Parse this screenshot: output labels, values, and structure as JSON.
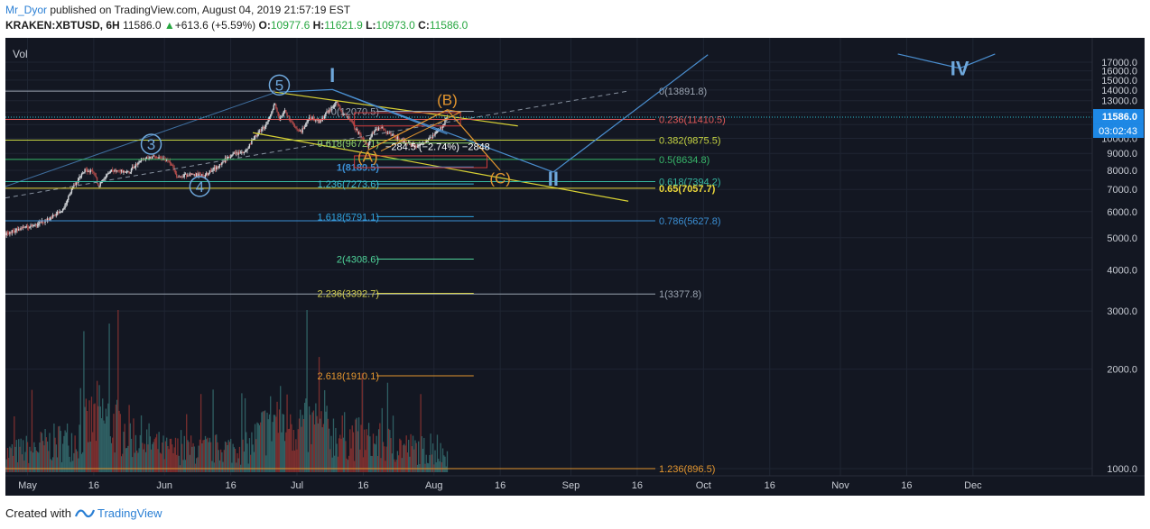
{
  "header": {
    "author": "Mr_Dyor",
    "published": "published on TradingView.com, August 04, 2019 21:57:19 EST",
    "symbol": "KRAKEN:XBTUSD, 6H",
    "last": "11586.0",
    "change": "+613.6 (+5.59%)",
    "o_label": "O:",
    "o": "10977.6",
    "h_label": "H:",
    "h": "11621.9",
    "l_label": "L:",
    "l": "10973.0",
    "c_label": "C:",
    "c": "11586.0"
  },
  "footer": {
    "created_with": "Created with",
    "brand": "TradingView"
  },
  "colors": {
    "background": "#131722",
    "candle_up": "#d5d8dc",
    "candle_down": "#ad4a4a",
    "vol_up": "#2f5f63",
    "vol_down": "#7a2f2f",
    "wave_blue": "#4a8ecf",
    "wave_orange": "#e3962f",
    "channel_yellow": "#d7d034",
    "price_tag": "#1e88e5"
  },
  "chart_data": {
    "type": "candlestick",
    "symbol": "KRAKEN:XBTUSD",
    "interval": "6H",
    "volume_label": "Vol",
    "x_axis": {
      "range": [
        "2019-04-26",
        "2019-12-28"
      ],
      "ticks": [
        {
          "date": "2019-05-01",
          "label": "May"
        },
        {
          "date": "2019-05-16",
          "label": "16"
        },
        {
          "date": "2019-06-01",
          "label": "Jun"
        },
        {
          "date": "2019-06-16",
          "label": "16"
        },
        {
          "date": "2019-07-01",
          "label": "Jul"
        },
        {
          "date": "2019-07-16",
          "label": "16"
        },
        {
          "date": "2019-08-01",
          "label": "Aug"
        },
        {
          "date": "2019-08-16",
          "label": "16"
        },
        {
          "date": "2019-09-01",
          "label": "Sep"
        },
        {
          "date": "2019-09-16",
          "label": "16"
        },
        {
          "date": "2019-10-01",
          "label": "Oct"
        },
        {
          "date": "2019-10-16",
          "label": "16"
        },
        {
          "date": "2019-11-01",
          "label": "Nov"
        },
        {
          "date": "2019-11-16",
          "label": "16"
        },
        {
          "date": "2019-12-01",
          "label": "Dec"
        }
      ]
    },
    "y_axis": {
      "range": [
        1000,
        18000
      ],
      "ticks": [
        "1000.0",
        "2000.0",
        "3000.0",
        "4000.0",
        "5000.0",
        "6000.0",
        "7000.0",
        "8000.0",
        "9000.0",
        "10000.0",
        "11000.0",
        "12000.0",
        "13000.0",
        "14000.0",
        "15000.0",
        "16000.0",
        "17000.0"
      ],
      "last_price_tag": "11586.0",
      "countdown_tag": "03:02:43"
    },
    "price_path": [
      [
        "2019-04-26",
        5150
      ],
      [
        "2019-05-01",
        5400
      ],
      [
        "2019-05-06",
        5700
      ],
      [
        "2019-05-09",
        6100
      ],
      [
        "2019-05-11",
        7000
      ],
      [
        "2019-05-14",
        8000
      ],
      [
        "2019-05-16",
        7900
      ],
      [
        "2019-05-17",
        7200
      ],
      [
        "2019-05-20",
        8000
      ],
      [
        "2019-05-24",
        7900
      ],
      [
        "2019-05-27",
        8700
      ],
      [
        "2019-05-30",
        8800
      ],
      [
        "2019-06-02",
        8600
      ],
      [
        "2019-06-04",
        7600
      ],
      [
        "2019-06-07",
        7800
      ],
      [
        "2019-06-10",
        7700
      ],
      [
        "2019-06-13",
        8200
      ],
      [
        "2019-06-16",
        8900
      ],
      [
        "2019-06-19",
        9100
      ],
      [
        "2019-06-22",
        10300
      ],
      [
        "2019-06-24",
        11000
      ],
      [
        "2019-06-26",
        12800
      ],
      [
        "2019-06-27",
        11200
      ],
      [
        "2019-06-28",
        12200
      ],
      [
        "2019-06-30",
        11000
      ],
      [
        "2019-07-02",
        10500
      ],
      [
        "2019-07-04",
        11600
      ],
      [
        "2019-07-06",
        11200
      ],
      [
        "2019-07-08",
        12100
      ],
      [
        "2019-07-10",
        12900
      ],
      [
        "2019-07-11",
        12000
      ],
      [
        "2019-07-13",
        11400
      ],
      [
        "2019-07-15",
        10300
      ],
      [
        "2019-07-17",
        9500
      ],
      [
        "2019-07-18",
        10400
      ],
      [
        "2019-07-20",
        10800
      ],
      [
        "2019-07-22",
        10300
      ],
      [
        "2019-07-25",
        9800
      ],
      [
        "2019-07-28",
        9500
      ],
      [
        "2019-07-30",
        9700
      ],
      [
        "2019-08-01",
        10200
      ],
      [
        "2019-08-03",
        10900
      ],
      [
        "2019-08-04",
        11586
      ]
    ],
    "volume_envelope": [
      [
        "2019-04-26",
        900
      ],
      [
        "2019-05-12",
        1700
      ],
      [
        "2019-05-17",
        2800
      ],
      [
        "2019-06-01",
        1100
      ],
      [
        "2019-06-20",
        1200
      ],
      [
        "2019-06-26",
        2800
      ],
      [
        "2019-07-02",
        2300
      ],
      [
        "2019-07-16",
        1600
      ],
      [
        "2019-08-04",
        900
      ]
    ],
    "fib_levels_left": [
      {
        "label": "0(12070.5)",
        "price": 12070.5
      },
      {
        "label": "0.618(9672.1)",
        "price": 9672.1
      },
      {
        "label": "1(8189.5)",
        "price": 8189.5
      },
      {
        "label": "1.236(7273.6)",
        "price": 7273.6
      },
      {
        "label": "1.618(5791.1)",
        "price": 5791.1
      },
      {
        "label": "2(4308.6)",
        "price": 4308.6
      },
      {
        "label": "2.236(3392.7)",
        "price": 3392.7
      },
      {
        "label": "2.618(1910.1)",
        "price": 1910.1
      }
    ],
    "fib_levels_right": [
      {
        "label": "0(13891.8)",
        "price": 13891.8
      },
      {
        "label": "0.236(11410.5)",
        "price": 11410.5
      },
      {
        "label": "0.382(9875.5)",
        "price": 9875.5
      },
      {
        "label": "0.5(8634.8)",
        "price": 8634.8
      },
      {
        "label": "0.618(7394.2)",
        "price": 7394.2
      },
      {
        "label": "0.65(7057.7)",
        "price": 7057.7
      },
      {
        "label": "0.786(5627.8)",
        "price": 5627.8
      },
      {
        "label": "1(3377.8)",
        "price": 3377.8
      },
      {
        "label": "1.236(896.5)",
        "price": 896.5
      }
    ],
    "wave_labels_blue": [
      {
        "label": "I",
        "date": "2019-07-09",
        "price": 14800
      },
      {
        "label": "II",
        "date": "2019-08-28",
        "price": 7200
      },
      {
        "label": "IV",
        "date": "2019-11-28",
        "price": 15500
      }
    ],
    "wave_labels_circled": [
      {
        "label": "3",
        "date": "2019-05-29",
        "price": 9600
      },
      {
        "label": "4",
        "date": "2019-06-09",
        "price": 7150
      },
      {
        "label": "5",
        "date": "2019-06-27",
        "price": 14500
      }
    ],
    "wave_labels_orange": [
      {
        "label": "(A)",
        "date": "2019-07-17",
        "price": 8500
      },
      {
        "label": "(B)",
        "date": "2019-08-04",
        "price": 12600
      },
      {
        "label": "(C)",
        "date": "2019-08-16",
        "price": 7300
      }
    ],
    "measure_annotation": "−284.5 (−2.74%) −2848",
    "projection_blue": [
      [
        "2019-07-09",
        14050
      ],
      [
        "2019-08-28",
        7900
      ],
      [
        "2019-10-02",
        17900
      ]
    ],
    "projection_blue_iv": [
      [
        "2019-11-14",
        18000
      ],
      [
        "2019-11-28",
        16300
      ],
      [
        "2019-12-06",
        18000
      ]
    ],
    "projection_orange": [
      [
        "2019-07-17",
        9200
      ],
      [
        "2019-08-04",
        12200
      ],
      [
        "2019-08-16",
        8000
      ]
    ]
  }
}
